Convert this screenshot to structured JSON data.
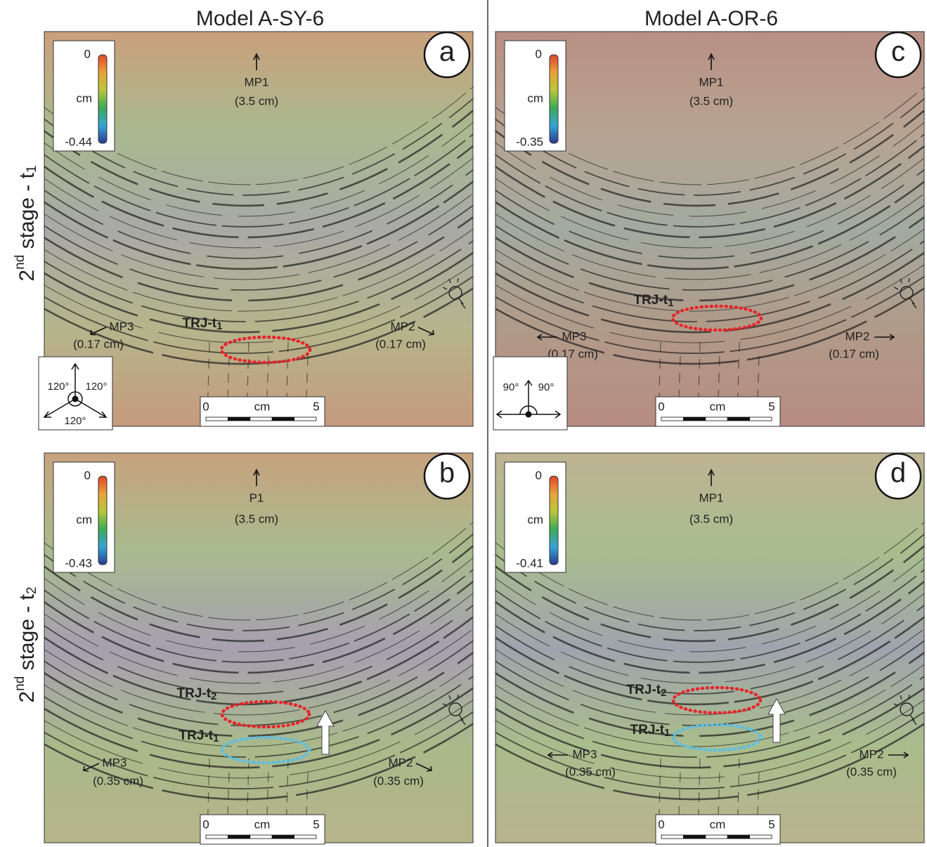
{
  "columns": [
    {
      "title": "Model A-SY-6"
    },
    {
      "title": "Model A-OR-6"
    }
  ],
  "rows": [
    {
      "label": {
        "base": "2",
        "sup": "nd",
        "mid": " stage - t",
        "sub": "1"
      }
    },
    {
      "label": {
        "base": "2",
        "sup": "nd",
        "mid": " stage - t",
        "sub": "2"
      }
    }
  ],
  "panels": [
    {
      "letter": "a",
      "colorbar": {
        "max": "0",
        "unit": "cm",
        "min": "-0.44"
      },
      "top_arrow": {
        "name": "MP1",
        "value": "(3.5 cm)"
      },
      "left_arrow": {
        "name": "MP3",
        "value": "(0.17 cm)"
      },
      "right_arrow": {
        "name": "MP2",
        "value": "(0.17 cm)"
      },
      "markers": [
        {
          "label": "TRJ-t",
          "sub": "1",
          "color": "#e8242a"
        }
      ],
      "scale": {
        "start": "0",
        "unit": "cm",
        "end": "5"
      },
      "angles": [
        "120°",
        "120°",
        "120°"
      ]
    },
    {
      "letter": "b",
      "colorbar": {
        "max": "0",
        "unit": "cm",
        "min": "-0.43"
      },
      "top_arrow": {
        "name": "P1",
        "value": "(3.5 cm)"
      },
      "left_arrow": {
        "name": "MP3",
        "value": "(0.35 cm)"
      },
      "right_arrow": {
        "name": "MP2",
        "value": "(0.35 cm)"
      },
      "markers": [
        {
          "label": "TRJ-t",
          "sub": "2",
          "color": "#e8242a"
        },
        {
          "label": "TRJ-t",
          "sub": "1",
          "color": "#5bbfe6"
        }
      ],
      "scale": {
        "start": "0",
        "unit": "cm",
        "end": "5"
      }
    },
    {
      "letter": "c",
      "colorbar": {
        "max": "0",
        "unit": "cm",
        "min": "-0.35"
      },
      "top_arrow": {
        "name": "MP1",
        "value": "(3.5 cm)"
      },
      "left_arrow": {
        "name": "MP3",
        "value": "(0.17 cm)"
      },
      "right_arrow": {
        "name": "MP2",
        "value": "(0.17 cm)"
      },
      "markers": [
        {
          "label": "TRJ-t",
          "sub": "1",
          "color": "#e8242a"
        }
      ],
      "scale": {
        "start": "0",
        "unit": "cm",
        "end": "5"
      },
      "angles": [
        "90°",
        "90°"
      ]
    },
    {
      "letter": "d",
      "colorbar": {
        "max": "0",
        "unit": "cm",
        "min": "-0.41"
      },
      "top_arrow": {
        "name": "MP1",
        "value": "(3.5 cm)"
      },
      "left_arrow": {
        "name": "MP3",
        "value": "(0.35 cm)"
      },
      "right_arrow": {
        "name": "MP2",
        "value": "(0.35 cm)"
      },
      "markers": [
        {
          "label": "TRJ-t",
          "sub": "2",
          "color": "#e8242a"
        },
        {
          "label": "TRJ-t",
          "sub": "1",
          "color": "#5bbfe6"
        }
      ],
      "scale": {
        "start": "0",
        "unit": "cm",
        "end": "5"
      }
    }
  ]
}
